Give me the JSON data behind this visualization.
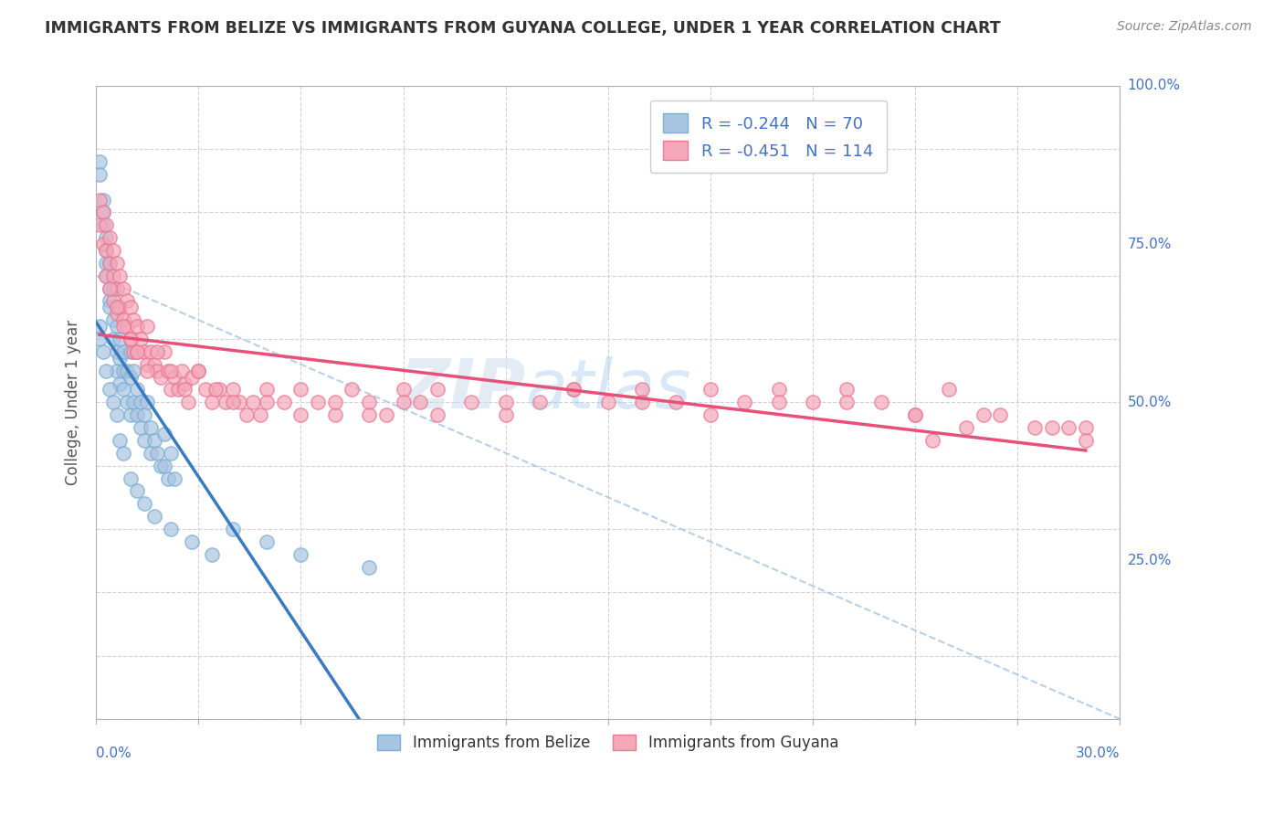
{
  "title": "IMMIGRANTS FROM BELIZE VS IMMIGRANTS FROM GUYANA COLLEGE, UNDER 1 YEAR CORRELATION CHART",
  "source": "Source: ZipAtlas.com",
  "ylabel_label": "College, Under 1 year",
  "legend_belize": "Immigrants from Belize",
  "legend_guyana": "Immigrants from Guyana",
  "r_belize": -0.244,
  "n_belize": 70,
  "r_guyana": -0.451,
  "n_guyana": 114,
  "color_belize_fill": "#a8c4e0",
  "color_belize_edge": "#7aafd4",
  "color_guyana_fill": "#f4a8b8",
  "color_guyana_edge": "#e87898",
  "trend_belize": "#3a7abf",
  "trend_guyana": "#e8507a",
  "dash_line_color": "#a8c4e0",
  "watermark_zip": "ZIP",
  "watermark_atlas": "atlas",
  "xmin": 0.0,
  "xmax": 0.3,
  "ymin": 0.0,
  "ymax": 1.0,
  "right_axis_labels": [
    [
      1.0,
      "100.0%"
    ],
    [
      0.75,
      "75.0%"
    ],
    [
      0.5,
      "50.0%"
    ],
    [
      0.25,
      "25.0%"
    ]
  ],
  "belize_points_x": [
    0.001,
    0.001,
    0.002,
    0.002,
    0.002,
    0.003,
    0.003,
    0.003,
    0.003,
    0.004,
    0.004,
    0.004,
    0.004,
    0.005,
    0.005,
    0.005,
    0.006,
    0.006,
    0.006,
    0.006,
    0.007,
    0.007,
    0.007,
    0.008,
    0.008,
    0.008,
    0.009,
    0.009,
    0.01,
    0.01,
    0.01,
    0.011,
    0.011,
    0.012,
    0.012,
    0.013,
    0.013,
    0.014,
    0.014,
    0.015,
    0.016,
    0.016,
    0.017,
    0.018,
    0.019,
    0.02,
    0.02,
    0.021,
    0.022,
    0.023,
    0.001,
    0.001,
    0.002,
    0.003,
    0.004,
    0.005,
    0.006,
    0.007,
    0.008,
    0.01,
    0.012,
    0.014,
    0.017,
    0.022,
    0.028,
    0.034,
    0.04,
    0.05,
    0.06,
    0.08
  ],
  "belize_points_y": [
    0.88,
    0.86,
    0.82,
    0.8,
    0.78,
    0.76,
    0.74,
    0.72,
    0.7,
    0.68,
    0.66,
    0.72,
    0.65,
    0.63,
    0.68,
    0.6,
    0.65,
    0.62,
    0.58,
    0.55,
    0.6,
    0.57,
    0.53,
    0.58,
    0.55,
    0.52,
    0.55,
    0.5,
    0.58,
    0.54,
    0.48,
    0.55,
    0.5,
    0.52,
    0.48,
    0.5,
    0.46,
    0.48,
    0.44,
    0.5,
    0.46,
    0.42,
    0.44,
    0.42,
    0.4,
    0.45,
    0.4,
    0.38,
    0.42,
    0.38,
    0.62,
    0.6,
    0.58,
    0.55,
    0.52,
    0.5,
    0.48,
    0.44,
    0.42,
    0.38,
    0.36,
    0.34,
    0.32,
    0.3,
    0.28,
    0.26,
    0.3,
    0.28,
    0.26,
    0.24
  ],
  "guyana_points_x": [
    0.001,
    0.001,
    0.002,
    0.002,
    0.003,
    0.003,
    0.003,
    0.004,
    0.004,
    0.005,
    0.005,
    0.005,
    0.006,
    0.006,
    0.006,
    0.007,
    0.007,
    0.008,
    0.008,
    0.009,
    0.009,
    0.01,
    0.01,
    0.011,
    0.011,
    0.012,
    0.012,
    0.013,
    0.014,
    0.015,
    0.015,
    0.016,
    0.017,
    0.018,
    0.019,
    0.02,
    0.021,
    0.022,
    0.023,
    0.024,
    0.025,
    0.026,
    0.027,
    0.028,
    0.03,
    0.032,
    0.034,
    0.036,
    0.038,
    0.04,
    0.042,
    0.044,
    0.046,
    0.048,
    0.05,
    0.055,
    0.06,
    0.065,
    0.07,
    0.075,
    0.08,
    0.085,
    0.09,
    0.095,
    0.1,
    0.11,
    0.12,
    0.13,
    0.14,
    0.15,
    0.16,
    0.17,
    0.18,
    0.19,
    0.2,
    0.21,
    0.22,
    0.23,
    0.24,
    0.25,
    0.004,
    0.006,
    0.008,
    0.01,
    0.012,
    0.015,
    0.018,
    0.022,
    0.026,
    0.03,
    0.035,
    0.04,
    0.05,
    0.06,
    0.07,
    0.08,
    0.09,
    0.1,
    0.12,
    0.14,
    0.16,
    0.18,
    0.2,
    0.22,
    0.24,
    0.26,
    0.28,
    0.29,
    0.29,
    0.285,
    0.275,
    0.265,
    0.255,
    0.245
  ],
  "guyana_points_y": [
    0.82,
    0.78,
    0.8,
    0.75,
    0.78,
    0.74,
    0.7,
    0.76,
    0.72,
    0.74,
    0.7,
    0.66,
    0.72,
    0.68,
    0.64,
    0.7,
    0.65,
    0.68,
    0.63,
    0.66,
    0.62,
    0.65,
    0.6,
    0.63,
    0.58,
    0.62,
    0.58,
    0.6,
    0.58,
    0.62,
    0.56,
    0.58,
    0.56,
    0.55,
    0.54,
    0.58,
    0.55,
    0.52,
    0.54,
    0.52,
    0.55,
    0.53,
    0.5,
    0.54,
    0.55,
    0.52,
    0.5,
    0.52,
    0.5,
    0.52,
    0.5,
    0.48,
    0.5,
    0.48,
    0.52,
    0.5,
    0.52,
    0.5,
    0.48,
    0.52,
    0.5,
    0.48,
    0.52,
    0.5,
    0.52,
    0.5,
    0.48,
    0.5,
    0.52,
    0.5,
    0.52,
    0.5,
    0.48,
    0.5,
    0.52,
    0.5,
    0.52,
    0.5,
    0.48,
    0.52,
    0.68,
    0.65,
    0.62,
    0.6,
    0.58,
    0.55,
    0.58,
    0.55,
    0.52,
    0.55,
    0.52,
    0.5,
    0.5,
    0.48,
    0.5,
    0.48,
    0.5,
    0.48,
    0.5,
    0.52,
    0.5,
    0.52,
    0.5,
    0.5,
    0.48,
    0.48,
    0.46,
    0.46,
    0.44,
    0.46,
    0.46,
    0.48,
    0.46,
    0.44
  ]
}
